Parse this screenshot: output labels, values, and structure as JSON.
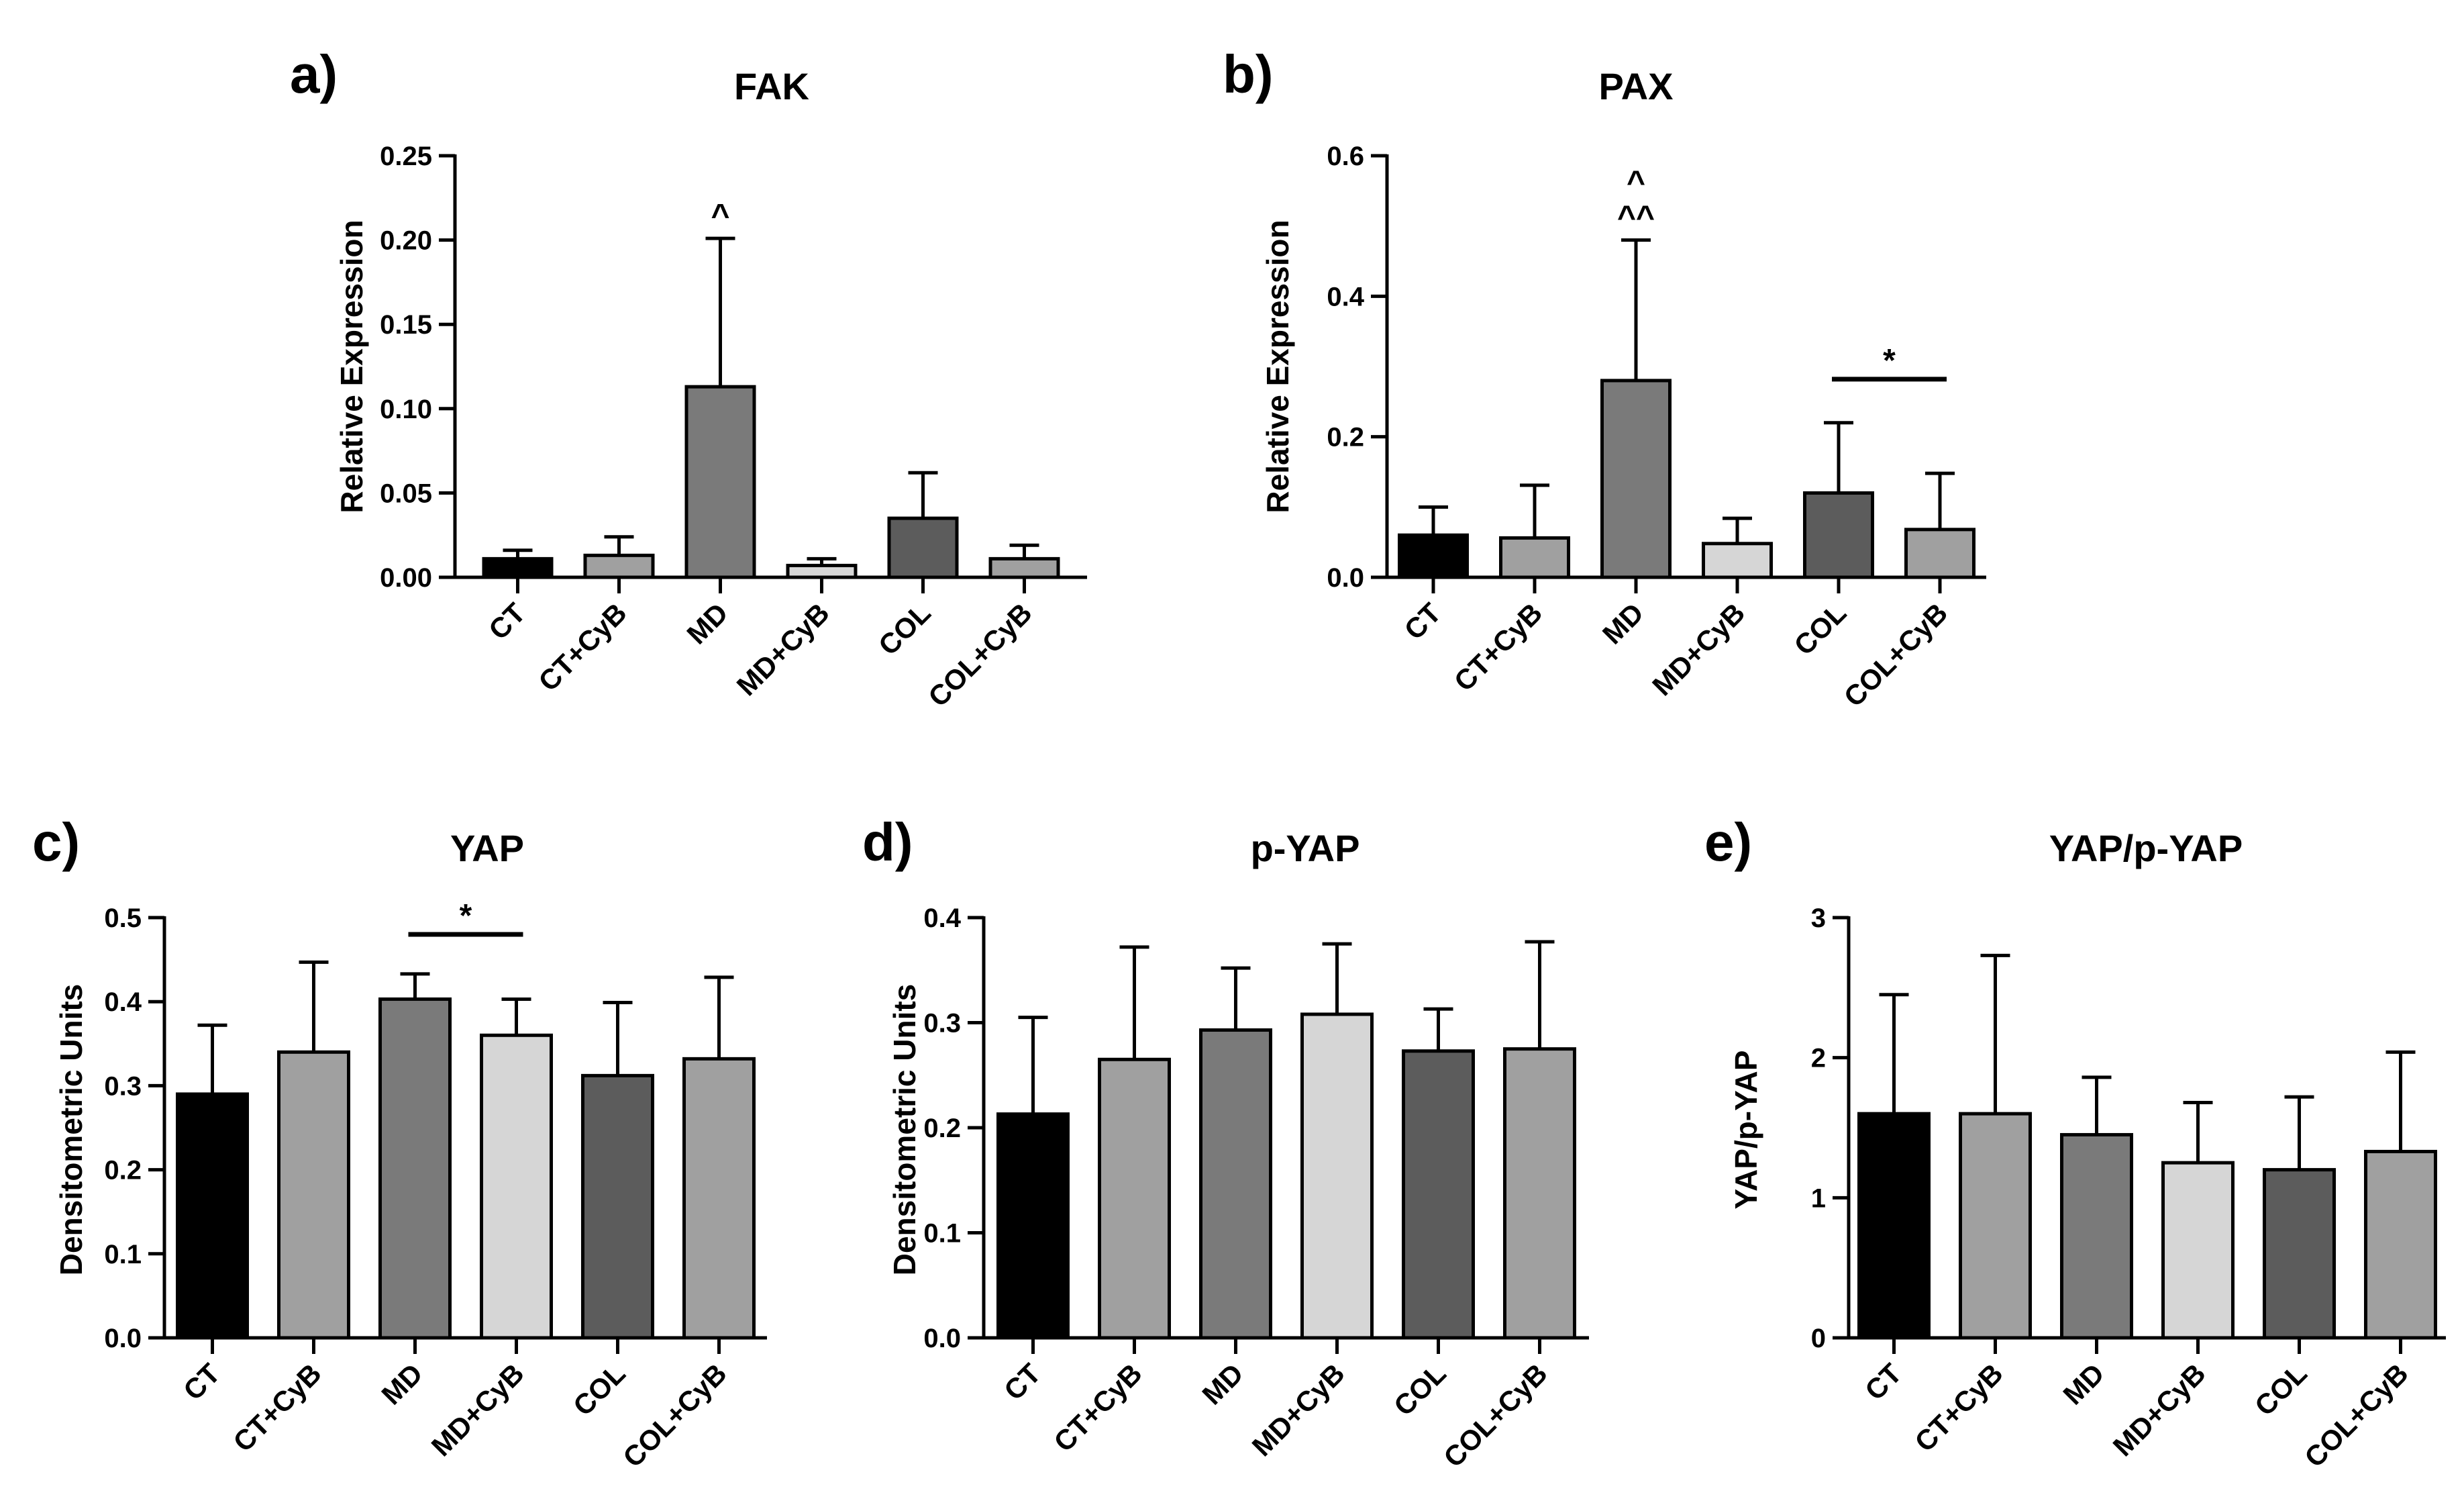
{
  "chart_data": [
    {
      "panel": "a)",
      "type": "bar",
      "title": "FAK",
      "ylabel": "Relative Expression",
      "ylim": [
        0,
        0.25
      ],
      "yticks": [
        "0.00",
        "0.05",
        "0.10",
        "0.15",
        "0.20",
        "0.25"
      ],
      "categories": [
        "CT",
        "CT+CyB",
        "MD",
        "MD+CyB",
        "COL",
        "COL+CyB"
      ],
      "values": [
        0.011,
        0.013,
        0.113,
        0.007,
        0.035,
        0.011
      ],
      "errors": [
        0.005,
        0.011,
        0.088,
        0.004,
        0.027,
        0.008
      ],
      "annotations": [
        {
          "category": "MD",
          "text": "^"
        }
      ],
      "brackets": []
    },
    {
      "panel": "b)",
      "type": "bar",
      "title": "PAX",
      "ylabel": "Relative Expression",
      "ylim": [
        0,
        0.6
      ],
      "yticks": [
        "0.0",
        "0.2",
        "0.4",
        "0.6"
      ],
      "categories": [
        "CT",
        "CT+CyB",
        "MD",
        "MD+CyB",
        "COL",
        "COL+CyB"
      ],
      "values": [
        0.06,
        0.056,
        0.28,
        0.048,
        0.12,
        0.068
      ],
      "errors": [
        0.04,
        0.075,
        0.2,
        0.036,
        0.1,
        0.08
      ],
      "annotations": [
        {
          "category": "MD",
          "lines": [
            "^",
            "^^"
          ]
        }
      ],
      "brackets": [
        {
          "from": "COL",
          "to": "COL+CyB",
          "y": 0.282,
          "text": "*"
        }
      ]
    },
    {
      "panel": "c)",
      "type": "bar",
      "title": "YAP",
      "ylabel": "Densitometric Units",
      "ylim": [
        0,
        0.5
      ],
      "yticks": [
        "0.0",
        "0.1",
        "0.2",
        "0.3",
        "0.4",
        "0.5"
      ],
      "categories": [
        "CT",
        "CT+CyB",
        "MD",
        "MD+CyB",
        "COL",
        "COL+CyB"
      ],
      "values": [
        0.29,
        0.34,
        0.403,
        0.36,
        0.312,
        0.332
      ],
      "errors": [
        0.082,
        0.107,
        0.03,
        0.043,
        0.087,
        0.097
      ],
      "annotations": [],
      "brackets": [
        {
          "from": "MD",
          "to": "MD+CyB",
          "y": 0.48,
          "text": "*"
        }
      ]
    },
    {
      "panel": "d)",
      "type": "bar",
      "title": "p-YAP",
      "ylabel": "Densitometric Units",
      "ylim": [
        0,
        0.4
      ],
      "yticks": [
        "0.0",
        "0.1",
        "0.2",
        "0.3",
        "0.4"
      ],
      "categories": [
        "CT",
        "CT+CyB",
        "MD",
        "MD+CyB",
        "COL",
        "COL+CyB"
      ],
      "values": [
        0.213,
        0.265,
        0.293,
        0.308,
        0.273,
        0.275
      ],
      "errors": [
        0.092,
        0.107,
        0.059,
        0.067,
        0.04,
        0.102
      ],
      "annotations": [],
      "brackets": []
    },
    {
      "panel": "e)",
      "type": "bar",
      "title": "YAP/p-YAP",
      "ylabel": "YAP/p-YAP",
      "ylim": [
        0,
        3
      ],
      "yticks": [
        "0",
        "1",
        "2",
        "3"
      ],
      "categories": [
        "CT",
        "CT+CyB",
        "MD",
        "MD+CyB",
        "COL",
        "COL+CyB"
      ],
      "values": [
        1.6,
        1.6,
        1.45,
        1.25,
        1.2,
        1.33
      ],
      "errors": [
        0.85,
        1.13,
        0.41,
        0.43,
        0.52,
        0.71
      ],
      "annotations": [],
      "brackets": []
    }
  ],
  "colors": {
    "bar_fills": [
      "#000000",
      "#a0a0a0",
      "#7a7a7a",
      "#d6d6d6",
      "#5c5c5c",
      "#a0a0a0"
    ],
    "axis": "#000000"
  }
}
